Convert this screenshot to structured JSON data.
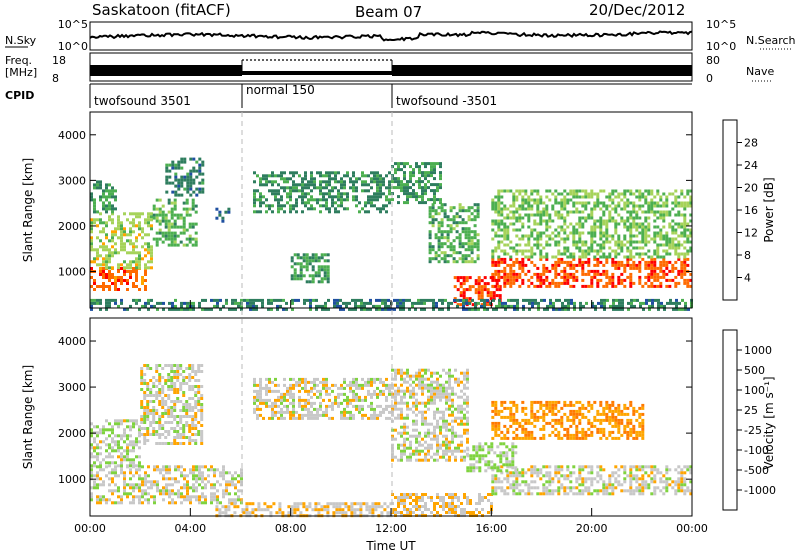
{
  "header": {
    "station": "Saskatoon (fitACF)",
    "beam": "Beam 07",
    "date": "20/Dec/2012"
  },
  "top_panels": {
    "nsky_label": "N.Sky",
    "nsky_ticks": [
      "10^5",
      "10^0"
    ],
    "nsearch_label": "N.Search",
    "freq_label_1": "Freq.",
    "freq_label_2": "[MHz]",
    "freq_ticks": [
      "18",
      "8"
    ],
    "nave_label": "Nave",
    "nave_ticks": [
      "80",
      "0"
    ],
    "cpid_label": "CPID",
    "cpid_segments": [
      {
        "label": "twofsound 3501",
        "start": 0,
        "end": 6
      },
      {
        "label": "normal 150",
        "start": 6,
        "end": 12
      },
      {
        "label": "twofsound -3501",
        "start": 12,
        "end": 24
      }
    ]
  },
  "x_axis": {
    "label": "Time UT",
    "ticks": [
      "00:00",
      "04:00",
      "08:00",
      "12:00",
      "16:00",
      "20:00",
      "00:00"
    ],
    "range_hours": [
      0,
      24
    ]
  },
  "power_panel": {
    "ylabel": "Slant Range [km]",
    "yticks": [
      "4000",
      "3000",
      "2000",
      "1000"
    ],
    "colorbar_label": "Power [dB]",
    "colorbar_ticks": [
      "28",
      "24",
      "20",
      "16",
      "12",
      "8",
      "4"
    ]
  },
  "velocity_panel": {
    "ylabel": "Slant Range [km]",
    "yticks": [
      "4000",
      "3000",
      "2000",
      "1000"
    ],
    "colorbar_label": "Velocity [m s⁻¹]",
    "colorbar_ticks": [
      "1000",
      "500",
      "100",
      "25",
      "-25",
      "-100",
      "-500",
      "-1000"
    ]
  },
  "colors": {
    "power_scale": [
      "#0000ff",
      "#1f4fa0",
      "#2e7d5e",
      "#4caf50",
      "#a6d35a",
      "#ffa500",
      "#ff6a00",
      "#ff0000"
    ],
    "velocity_scale": [
      "#1f4fc0",
      "#2f6f9f",
      "#4aa84a",
      "#7fd33f",
      "#c8c8c8",
      "#ffa500",
      "#ff7a00",
      "#ff3000",
      "#e00000"
    ]
  },
  "chart_data": [
    {
      "type": "heatmap",
      "title": "Power [dB]",
      "xlabel": "Time UT",
      "ylabel": "Slant Range [km]",
      "xlim": [
        0,
        24
      ],
      "ylim": [
        200,
        4500
      ],
      "color_range": [
        0,
        32
      ],
      "regions": [
        {
          "t": [
            0,
            2.2
          ],
          "r": [
            600,
            1100
          ],
          "value": 26
        },
        {
          "t": [
            0,
            2.5
          ],
          "r": [
            1100,
            2300
          ],
          "value": 18
        },
        {
          "t": [
            0,
            1
          ],
          "r": [
            2300,
            3000
          ],
          "value": 12
        },
        {
          "t": [
            2.5,
            4.2
          ],
          "r": [
            1600,
            2600
          ],
          "value": 14
        },
        {
          "t": [
            3,
            4.5
          ],
          "r": [
            2700,
            3500
          ],
          "value": 10
        },
        {
          "t": [
            5,
            5.5
          ],
          "r": [
            2100,
            2400
          ],
          "value": 8
        },
        {
          "t": [
            6.5,
            12
          ],
          "r": [
            2300,
            3200
          ],
          "value": 11
        },
        {
          "t": [
            8,
            9.5
          ],
          "r": [
            800,
            1400
          ],
          "value": 12
        },
        {
          "t": [
            12,
            14
          ],
          "r": [
            2500,
            3400
          ],
          "value": 12
        },
        {
          "t": [
            13.5,
            15.5
          ],
          "r": [
            1200,
            2500
          ],
          "value": 14
        },
        {
          "t": [
            14.5,
            16.3
          ],
          "r": [
            300,
            900
          ],
          "value": 28
        },
        {
          "t": [
            16,
            24
          ],
          "r": [
            700,
            1300
          ],
          "value": 27
        },
        {
          "t": [
            16,
            24
          ],
          "r": [
            1300,
            2800
          ],
          "value": 16
        },
        {
          "t": [
            0,
            24
          ],
          "r": [
            200,
            400
          ],
          "value": 10
        }
      ]
    },
    {
      "type": "heatmap",
      "title": "Velocity",
      "xlabel": "Time UT",
      "ylabel": "Slant Range [km]",
      "xlim": [
        0,
        24
      ],
      "ylim": [
        200,
        4500
      ],
      "color_range": [
        -1000,
        1000
      ],
      "regions": [
        {
          "t": [
            0,
            6
          ],
          "r": [
            500,
            1300
          ],
          "value": 0
        },
        {
          "t": [
            0,
            2
          ],
          "r": [
            1300,
            2300
          ],
          "value": 60
        },
        {
          "t": [
            2,
            4.5
          ],
          "r": [
            1800,
            3500
          ],
          "value": 0
        },
        {
          "t": [
            6.5,
            12
          ],
          "r": [
            2300,
            3200
          ],
          "value": 0
        },
        {
          "t": [
            5,
            12
          ],
          "r": [
            200,
            500
          ],
          "value": -80
        },
        {
          "t": [
            12,
            15
          ],
          "r": [
            1400,
            3400
          ],
          "value": 0
        },
        {
          "t": [
            12,
            16
          ],
          "r": [
            200,
            700
          ],
          "value": -100
        },
        {
          "t": [
            16,
            24
          ],
          "r": [
            700,
            1300
          ],
          "value": 0
        },
        {
          "t": [
            16,
            22
          ],
          "r": [
            1900,
            2700
          ],
          "value": -300
        },
        {
          "t": [
            15,
            17
          ],
          "r": [
            1200,
            1800
          ],
          "value": 150
        }
      ]
    }
  ]
}
